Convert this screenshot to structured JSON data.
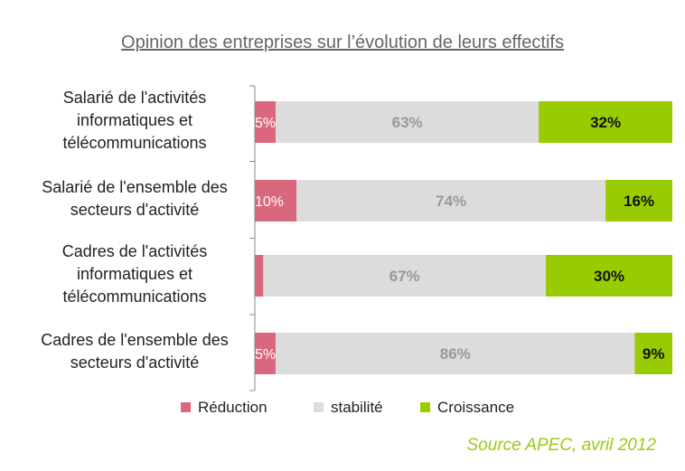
{
  "chart_data": {
    "type": "bar",
    "orientation": "horizontal",
    "stacked": true,
    "percent": true,
    "title": "Opinion des entreprises sur l’évolution de leurs effectifs",
    "categories": [
      "Salarié de l'activités\ninformatiques et\ntélécommunications",
      "Salarié de l'ensemble des\nsecteurs d'activité",
      "Cadres de l'activités\ninformatiques et\ntélécommunications",
      "Cadres de l'ensemble des\nsecteurs d'activité"
    ],
    "series": [
      {
        "name": "Réduction",
        "color": "#d9687e",
        "values": [
          5,
          10,
          2,
          5
        ],
        "labels": [
          "5%",
          "10%",
          "",
          "5%"
        ]
      },
      {
        "name": "stabilité",
        "color": "#dcdcdc",
        "values": [
          63,
          74,
          67,
          86
        ],
        "labels": [
          "63%",
          "74%",
          "67%",
          "86%"
        ]
      },
      {
        "name": "Croissance",
        "color": "#99cc00",
        "values": [
          32,
          16,
          30,
          9
        ],
        "labels": [
          "32%",
          "16%",
          "30%",
          "9%"
        ]
      }
    ],
    "xlim": [
      0,
      100
    ],
    "legend_position": "bottom",
    "grid": false
  },
  "source": "Source APEC, avril 2012"
}
